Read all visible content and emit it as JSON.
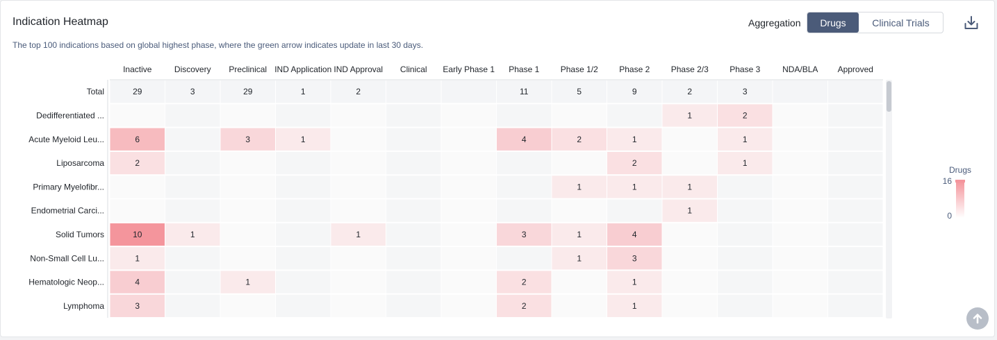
{
  "header": {
    "title": "Indication Heatmap",
    "subtitle": "The top 100 indications based on global highest phase, where the green arrow indicates update in last 30 days.",
    "aggregation_label": "Aggregation",
    "aggregation_options": [
      "Drugs",
      "Clinical Trials"
    ],
    "aggregation_selected": "Drugs"
  },
  "icons": {
    "download": "download-icon",
    "back_to_top": "arrow-up-circle-icon"
  },
  "colors": {
    "heat_high": "#f4959c",
    "heat_low": "#fbf3f4",
    "cell_even": "#fafafa",
    "cell_odd": "#f5f6f7",
    "total_row": "#f4f5f7"
  },
  "chart_data": {
    "type": "heatmap",
    "title": "",
    "columns": [
      "Inactive",
      "Discovery",
      "Preclinical",
      "IND Application",
      "IND Approval",
      "Clinical",
      "Early Phase 1",
      "Phase 1",
      "Phase 1/2",
      "Phase 2",
      "Phase 2/3",
      "Phase 3",
      "NDA/BLA",
      "Approved"
    ],
    "rows": [
      {
        "label": "Total",
        "values": [
          29,
          3,
          29,
          1,
          2,
          null,
          null,
          11,
          5,
          9,
          2,
          3,
          null,
          null
        ]
      },
      {
        "label": "Dedifferentiated ...",
        "values": [
          null,
          null,
          null,
          null,
          null,
          null,
          null,
          null,
          null,
          null,
          1,
          2,
          null,
          null
        ]
      },
      {
        "label": "Acute Myeloid Leu...",
        "values": [
          6,
          null,
          3,
          1,
          null,
          null,
          null,
          4,
          2,
          1,
          null,
          1,
          null,
          null
        ]
      },
      {
        "label": "Liposarcoma",
        "values": [
          2,
          null,
          null,
          null,
          null,
          null,
          null,
          null,
          null,
          2,
          null,
          1,
          null,
          null
        ]
      },
      {
        "label": "Primary Myelofibr...",
        "values": [
          null,
          null,
          null,
          null,
          null,
          null,
          null,
          null,
          1,
          1,
          1,
          null,
          null,
          null
        ]
      },
      {
        "label": "Endometrial Carci...",
        "values": [
          null,
          null,
          null,
          null,
          null,
          null,
          null,
          null,
          null,
          null,
          1,
          null,
          null,
          null
        ]
      },
      {
        "label": "Solid Tumors",
        "values": [
          10,
          1,
          null,
          null,
          1,
          null,
          null,
          3,
          1,
          4,
          null,
          null,
          null,
          null
        ]
      },
      {
        "label": "Non-Small Cell Lu...",
        "values": [
          1,
          null,
          null,
          null,
          null,
          null,
          null,
          null,
          1,
          3,
          null,
          null,
          null,
          null
        ]
      },
      {
        "label": "Hematologic Neop...",
        "values": [
          4,
          null,
          1,
          null,
          null,
          null,
          null,
          2,
          null,
          1,
          null,
          null,
          null,
          null
        ]
      },
      {
        "label": "Lymphoma",
        "values": [
          3,
          null,
          null,
          null,
          null,
          null,
          null,
          2,
          null,
          1,
          null,
          null,
          null,
          null
        ]
      }
    ],
    "legend": {
      "title": "Drugs",
      "min": 0,
      "max": 16
    }
  }
}
